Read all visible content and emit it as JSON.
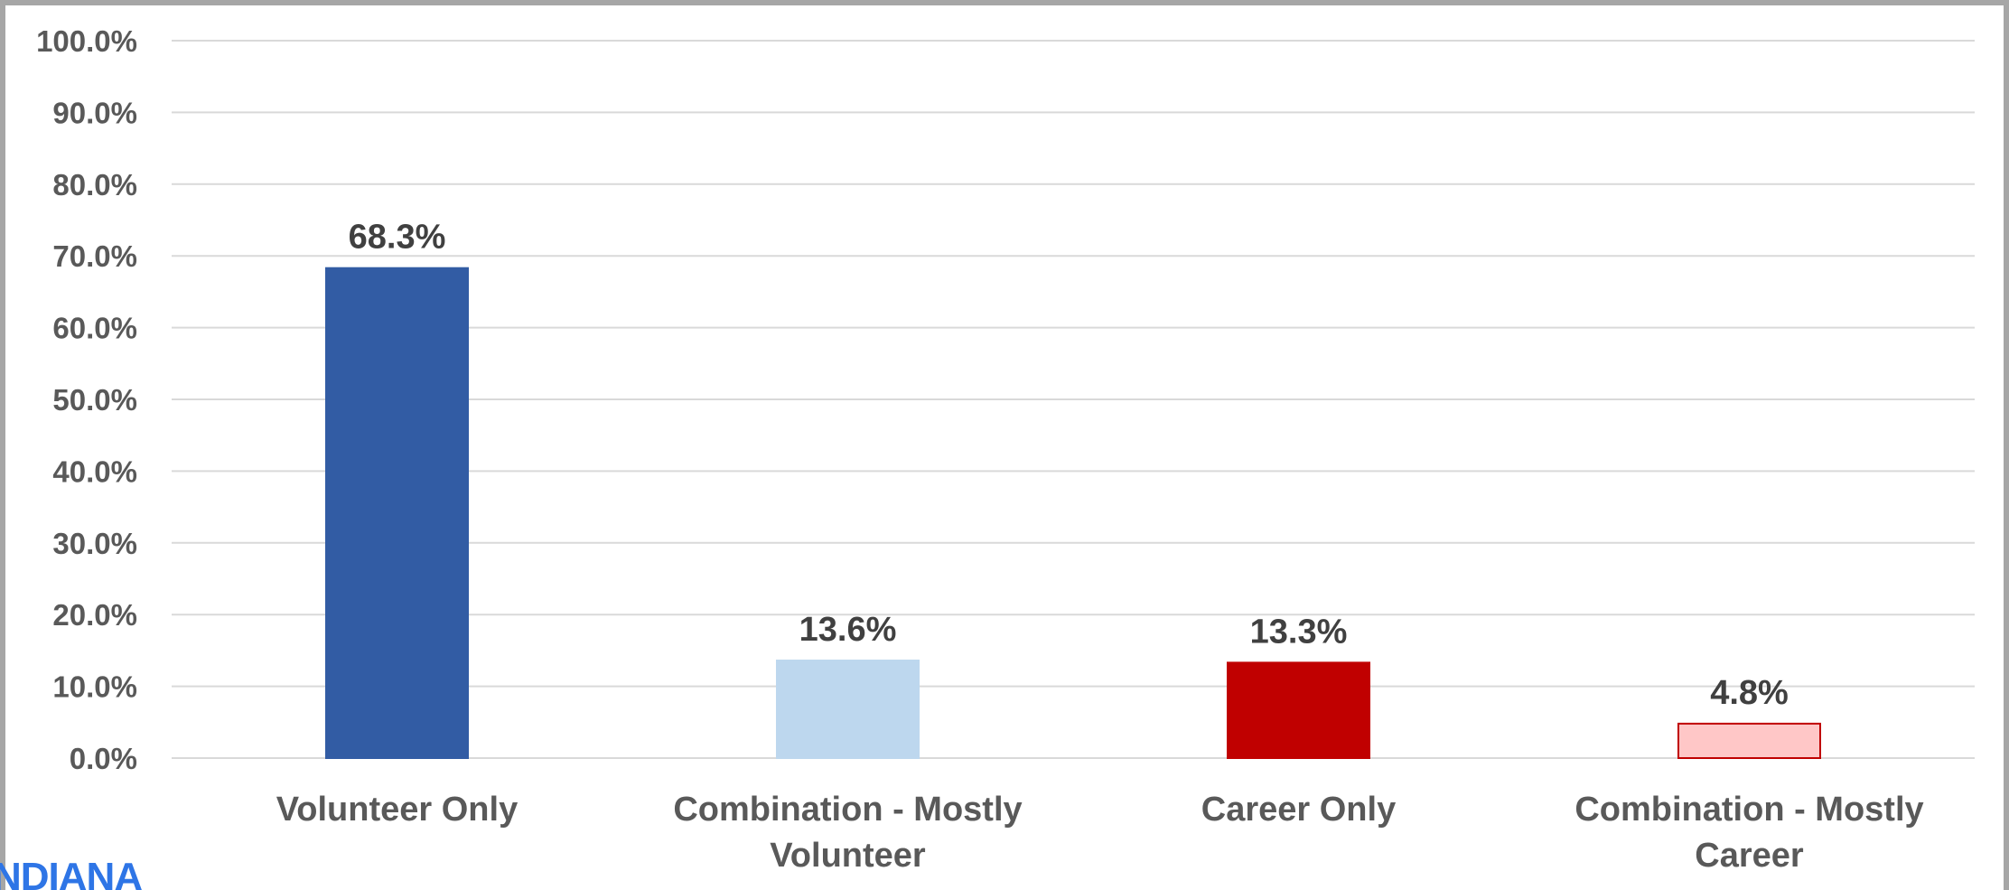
{
  "chart_data": {
    "type": "bar",
    "categories": [
      [
        "Volunteer Only"
      ],
      [
        "Combination - Mostly",
        "Volunteer"
      ],
      [
        "Career Only"
      ],
      [
        "Combination - Mostly",
        "Career"
      ]
    ],
    "values": [
      68.3,
      13.6,
      13.3,
      4.8
    ],
    "data_labels": [
      "68.3%",
      "13.6%",
      "13.3%",
      "4.8%"
    ],
    "bar_colors": [
      "#325ca4",
      "#bdd7ee",
      "#c00000",
      "#ffc7c7"
    ],
    "bar_borders": [
      "#325ca4",
      "#bdd7ee",
      "#c00000",
      "#c00000"
    ],
    "ylim": [
      0,
      100
    ],
    "yticks": [
      "0.0%",
      "10.0%",
      "20.0%",
      "30.0%",
      "40.0%",
      "50.0%",
      "60.0%",
      "70.0%",
      "80.0%",
      "90.0%",
      "100.0%"
    ],
    "grid": true,
    "title": "",
    "xlabel": "",
    "ylabel": ""
  },
  "watermark": "NDIANA",
  "colors": {
    "grid": "#d9d9d9",
    "frame": "#a6a6a6",
    "watermark": "#2e75e6"
  }
}
